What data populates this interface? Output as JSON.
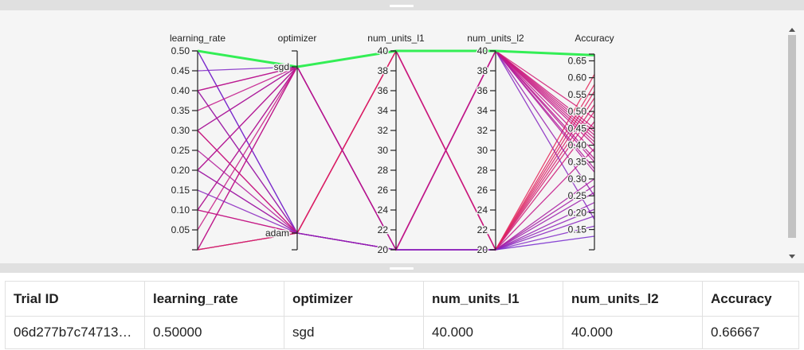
{
  "chart_data": {
    "type": "parallel-coordinates",
    "axes": [
      {
        "label": "learning_rate",
        "kind": "numeric",
        "range": [
          0.0,
          0.5
        ],
        "ticks": [
          0.05,
          0.1,
          0.15,
          0.2,
          0.25,
          0.3,
          0.35,
          0.4,
          0.45,
          0.5
        ],
        "tick_labels": [
          "0.05",
          "0.10",
          "0.15",
          "0.20",
          "0.25",
          "0.30",
          "0.35",
          "0.40",
          "0.45",
          "0.50"
        ]
      },
      {
        "label": "optimizer",
        "kind": "categorical",
        "categories": [
          "sgd",
          "adam"
        ]
      },
      {
        "label": "num_units_l1",
        "kind": "numeric",
        "range": [
          20,
          40
        ],
        "ticks": [
          20,
          22,
          24,
          26,
          28,
          30,
          32,
          34,
          36,
          38,
          40
        ],
        "tick_labels": [
          "20",
          "22",
          "24",
          "26",
          "28",
          "30",
          "32",
          "34",
          "36",
          "38",
          "40"
        ]
      },
      {
        "label": "num_units_l2",
        "kind": "numeric",
        "range": [
          20,
          40
        ],
        "ticks": [
          20,
          22,
          24,
          26,
          28,
          30,
          32,
          34,
          36,
          38,
          40
        ],
        "tick_labels": [
          "20",
          "22",
          "24",
          "26",
          "28",
          "30",
          "32",
          "34",
          "36",
          "38",
          "40"
        ]
      },
      {
        "label": "Accuracy",
        "kind": "numeric",
        "range": [
          0.09,
          0.67
        ],
        "ticks": [
          0.15,
          0.2,
          0.25,
          0.3,
          0.35,
          0.4,
          0.45,
          0.5,
          0.55,
          0.6,
          0.65
        ],
        "tick_labels": [
          "0.15",
          "0.20",
          "0.25",
          "0.30",
          "0.35",
          "0.40",
          "0.45",
          "0.50",
          "0.55",
          "0.60",
          "0.65"
        ]
      }
    ],
    "color_scale": {
      "low": "#6a2bd9",
      "mid": "#c0138a",
      "high": "#ee2a4a",
      "best": "#33ee55"
    },
    "grid": false,
    "trials": [
      {
        "lr": 0.5,
        "opt": "sgd",
        "l1": 40,
        "l2": 40,
        "acc": 0.66667
      },
      {
        "lr": 0.5,
        "opt": "sgd",
        "l1": 40,
        "l2": 20,
        "acc": 0.52
      },
      {
        "lr": 0.5,
        "opt": "adam",
        "l1": 20,
        "l2": 40,
        "acc": 0.18
      },
      {
        "lr": 0.5,
        "opt": "adam",
        "l1": 20,
        "l2": 20,
        "acc": 0.13
      },
      {
        "lr": 0.5,
        "opt": "sgd",
        "l1": 20,
        "l2": 40,
        "acc": 0.25
      },
      {
        "lr": 0.4,
        "opt": "sgd",
        "l1": 40,
        "l2": 40,
        "acc": 0.42
      },
      {
        "lr": 0.4,
        "opt": "adam",
        "l1": 40,
        "l2": 20,
        "acc": 0.56
      },
      {
        "lr": 0.4,
        "opt": "sgd",
        "l1": 20,
        "l2": 40,
        "acc": 0.35
      },
      {
        "lr": 0.4,
        "opt": "adam",
        "l1": 20,
        "l2": 20,
        "acc": 0.21
      },
      {
        "lr": 0.3,
        "opt": "sgd",
        "l1": 40,
        "l2": 40,
        "acc": 0.48
      },
      {
        "lr": 0.3,
        "opt": "adam",
        "l1": 40,
        "l2": 20,
        "acc": 0.61
      },
      {
        "lr": 0.3,
        "opt": "sgd",
        "l1": 20,
        "l2": 20,
        "acc": 0.28
      },
      {
        "lr": 0.3,
        "opt": "adam",
        "l1": 20,
        "l2": 40,
        "acc": 0.38
      },
      {
        "lr": 0.2,
        "opt": "sgd",
        "l1": 40,
        "l2": 40,
        "acc": 0.45
      },
      {
        "lr": 0.2,
        "opt": "adam",
        "l1": 40,
        "l2": 20,
        "acc": 0.5
      },
      {
        "lr": 0.2,
        "opt": "sgd",
        "l1": 20,
        "l2": 40,
        "acc": 0.32
      },
      {
        "lr": 0.2,
        "opt": "adam",
        "l1": 20,
        "l2": 20,
        "acc": 0.23
      },
      {
        "lr": 0.1,
        "opt": "sgd",
        "l1": 40,
        "l2": 20,
        "acc": 0.54
      },
      {
        "lr": 0.1,
        "opt": "adam",
        "l1": 40,
        "l2": 40,
        "acc": 0.44
      },
      {
        "lr": 0.1,
        "opt": "sgd",
        "l1": 20,
        "l2": 20,
        "acc": 0.3
      },
      {
        "lr": 0.1,
        "opt": "adam",
        "l1": 20,
        "l2": 40,
        "acc": 0.4
      },
      {
        "lr": 0.0,
        "opt": "sgd",
        "l1": 40,
        "l2": 20,
        "acc": 0.47
      },
      {
        "lr": 0.0,
        "opt": "adam",
        "l1": 40,
        "l2": 40,
        "acc": 0.43
      },
      {
        "lr": 0.0,
        "opt": "sgd",
        "l1": 20,
        "l2": 40,
        "acc": 0.36
      },
      {
        "lr": 0.0,
        "opt": "adam",
        "l1": 20,
        "l2": 20,
        "acc": 0.26
      },
      {
        "lr": 0.0,
        "opt": "adam",
        "l1": 40,
        "l2": 20,
        "acc": 0.58
      },
      {
        "lr": 0.45,
        "opt": "sgd",
        "l1": 20,
        "l2": 20,
        "acc": 0.16
      },
      {
        "lr": 0.25,
        "opt": "adam",
        "l1": 20,
        "l2": 40,
        "acc": 0.33
      },
      {
        "lr": 0.35,
        "opt": "sgd",
        "l1": 40,
        "l2": 20,
        "acc": 0.39
      },
      {
        "lr": 0.15,
        "opt": "adam",
        "l1": 20,
        "l2": 20,
        "acc": 0.19
      },
      {
        "lr": 0.05,
        "opt": "sgd",
        "l1": 20,
        "l2": 40,
        "acc": 0.41
      }
    ]
  },
  "table": {
    "headers": [
      "Trial ID",
      "learning_rate",
      "optimizer",
      "num_units_l1",
      "num_units_l2",
      "Accuracy"
    ],
    "rows": [
      [
        "06d277b7c74713…",
        "0.50000",
        "sgd",
        "40.000",
        "40.000",
        "0.66667"
      ]
    ]
  }
}
